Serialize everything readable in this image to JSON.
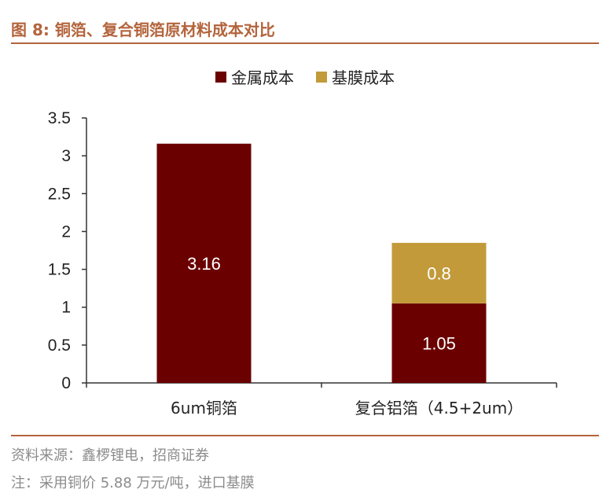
{
  "figure": {
    "title": "图 8:   铜箔、复合铜箔原材料成本对比",
    "source": "资料来源：鑫椤锂电，招商证券",
    "note": "注：采用铜价 5.88 万元/吨，进口基膜"
  },
  "colors": {
    "metal": "#6b0000",
    "film": "#c29a3a",
    "accent": "#b3643c"
  },
  "chart_data": {
    "type": "bar",
    "stacked": true,
    "categories": [
      "6um铜箔",
      "复合铝箔（4.5+2um）"
    ],
    "series": [
      {
        "name": "金属成本",
        "values": [
          3.16,
          1.05
        ],
        "labels": [
          "3.16",
          "1.05"
        ]
      },
      {
        "name": "基膜成本",
        "values": [
          0,
          0.8
        ],
        "labels": [
          "",
          "0.8"
        ]
      }
    ],
    "ylim": [
      0,
      3.5
    ],
    "yticks": [
      "0",
      "0.5",
      "1",
      "1.5",
      "2",
      "2.5",
      "3",
      "3.5"
    ],
    "legend_position": "top-center",
    "grid": false
  }
}
